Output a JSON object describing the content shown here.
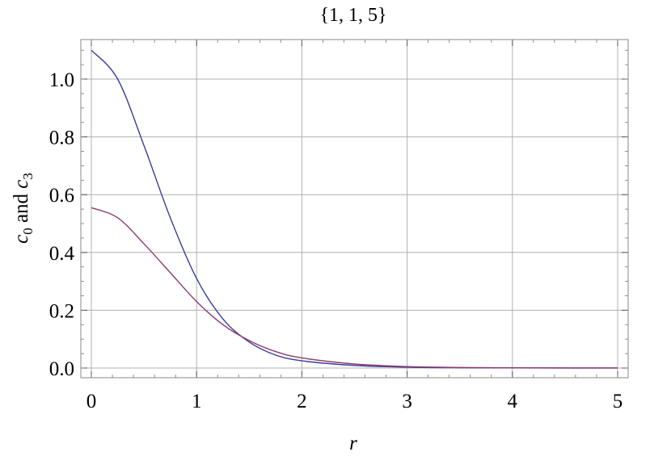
{
  "chart_data": {
    "type": "line",
    "title": "{1, 1, 5}",
    "xlabel": "r",
    "ylabel_parts": {
      "c": "c",
      "sub0": "0",
      "and": " and ",
      "sub3": "3"
    },
    "xlim": [
      0,
      5
    ],
    "ylim": [
      -0.03,
      1.13
    ],
    "x_ticks": [
      0,
      1,
      2,
      3,
      4,
      5
    ],
    "x_tick_labels": [
      "0",
      "1",
      "2",
      "3",
      "4",
      "5"
    ],
    "y_ticks": [
      0.0,
      0.2,
      0.4,
      0.6,
      0.8,
      1.0
    ],
    "y_tick_labels": [
      "0.0",
      "0.2",
      "0.4",
      "0.6",
      "0.8",
      "1.0"
    ],
    "grid": true,
    "colors": {
      "series1": "#3b3b9c",
      "series2": "#8e3b6e",
      "grid": "#b0b0b0",
      "frame": "#888888"
    },
    "series": [
      {
        "x": [
          0,
          0.25,
          0.5,
          0.75,
          1.0,
          1.25,
          1.5,
          1.75,
          2.0,
          2.5,
          3.0,
          3.5,
          4.0,
          4.5,
          5.0
        ],
        "values": [
          1.1,
          1.0,
          0.77,
          0.52,
          0.31,
          0.17,
          0.09,
          0.045,
          0.025,
          0.009,
          0.003,
          0.001,
          0.0005,
          0.0002,
          0.0001
        ]
      },
      {
        "x": [
          0,
          0.25,
          0.5,
          0.75,
          1.0,
          1.25,
          1.5,
          1.75,
          2.0,
          2.5,
          3.0,
          3.5,
          4.0,
          4.5,
          5.0
        ],
        "values": [
          0.555,
          0.52,
          0.43,
          0.33,
          0.23,
          0.15,
          0.095,
          0.057,
          0.035,
          0.014,
          0.005,
          0.002,
          0.0008,
          0.0003,
          0.0001
        ]
      }
    ]
  }
}
